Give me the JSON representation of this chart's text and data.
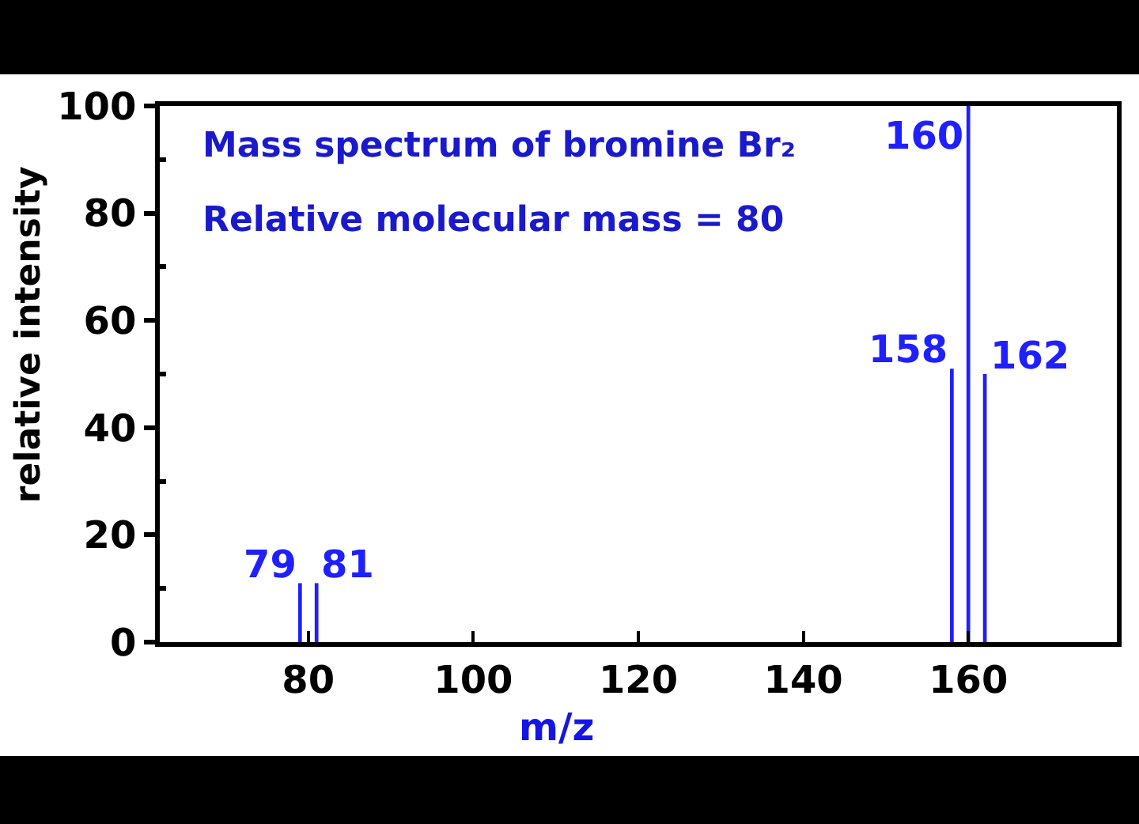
{
  "chart_data": {
    "type": "bar",
    "title": "Mass spectrum of bromine Br₂",
    "subtitle": "Relative molecular mass = 80",
    "xlabel": "m/z",
    "ylabel": "relative intensity",
    "x": [
      79,
      81,
      158,
      160,
      162
    ],
    "values": [
      11,
      11,
      51,
      100,
      50
    ],
    "color": "#1f1fff",
    "annotations": [
      {
        "text": "79",
        "x": 79,
        "y": 11
      },
      {
        "text": "81",
        "x": 81,
        "y": 11
      },
      {
        "text": "158",
        "x": 158,
        "y": 51
      },
      {
        "text": "160",
        "x": 160,
        "y": 100
      },
      {
        "text": "162",
        "x": 162,
        "y": 50
      }
    ],
    "xlim": [
      62,
      178
    ],
    "xticks": [
      80,
      100,
      120,
      140,
      160
    ],
    "ylim": [
      0,
      100
    ],
    "yticks": [
      0,
      {
        "value": 10,
        "label": null
      },
      20,
      {
        "value": 30,
        "label": null
      },
      40,
      {
        "value": 50,
        "label": null
      },
      60,
      {
        "value": 70,
        "label": null
      },
      80,
      {
        "value": 90,
        "label": null
      },
      100
    ]
  }
}
